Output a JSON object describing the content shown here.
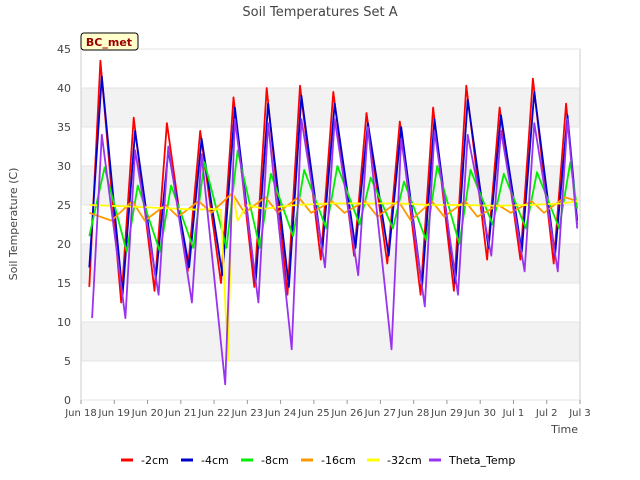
{
  "chart_data": {
    "type": "line",
    "title": "Soil Temperatures Set A",
    "xlabel": "Time",
    "ylabel": "Soil Temperature (C)",
    "xlim": [
      "2024-06-18",
      "2024-07-03"
    ],
    "ylim": [
      0,
      45
    ],
    "yticks": [
      0,
      5,
      10,
      15,
      20,
      25,
      30,
      35,
      40,
      45
    ],
    "xticks": [
      {
        "date": "2024-06-18",
        "label": "Jun 18"
      },
      {
        "date": "2024-06-19",
        "label": "Jun 19"
      },
      {
        "date": "2024-06-20",
        "label": "Jun 20"
      },
      {
        "date": "2024-06-21",
        "label": "Jun 21"
      },
      {
        "date": "2024-06-22",
        "label": "Jun 22"
      },
      {
        "date": "2024-06-23",
        "label": "Jun 23"
      },
      {
        "date": "2024-06-24",
        "label": "Jun 24"
      },
      {
        "date": "2024-06-25",
        "label": "Jun 25"
      },
      {
        "date": "2024-06-26",
        "label": "Jun 26"
      },
      {
        "date": "2024-06-27",
        "label": "Jun 27"
      },
      {
        "date": "2024-06-28",
        "label": "Jun 28"
      },
      {
        "date": "2024-06-29",
        "label": "Jun 29"
      },
      {
        "date": "2024-06-30",
        "label": "Jun 30"
      },
      {
        "date": "2024-07-01",
        "label": "Jul 1"
      },
      {
        "date": "2024-07-02",
        "label": "Jul 2"
      },
      {
        "date": "2024-07-03",
        "label": "Jul 3"
      }
    ],
    "grid": "horizontal bands",
    "legend": "bottom",
    "station_label": "BC_met",
    "series": [
      {
        "name": "-2cm",
        "color": "#ff0000",
        "x": [
          "2024-06-18 06:00",
          "2024-06-18 14:00",
          "2024-06-19 05:00",
          "2024-06-19 14:00",
          "2024-06-20 05:00",
          "2024-06-20 14:00",
          "2024-06-21 05:00",
          "2024-06-21 14:00",
          "2024-06-22 05:00",
          "2024-06-22 14:00",
          "2024-06-23 05:00",
          "2024-06-23 14:00",
          "2024-06-24 05:00",
          "2024-06-24 14:00",
          "2024-06-25 05:00",
          "2024-06-25 14:00",
          "2024-06-26 05:00",
          "2024-06-26 14:00",
          "2024-06-27 05:00",
          "2024-06-27 14:00",
          "2024-06-28 05:00",
          "2024-06-28 14:00",
          "2024-06-29 05:00",
          "2024-06-29 14:00",
          "2024-06-30 05:00",
          "2024-06-30 14:00",
          "2024-07-01 05:00",
          "2024-07-01 14:00",
          "2024-07-02 05:00",
          "2024-07-02 14:00",
          "2024-07-02 22:00"
        ],
        "y": [
          14.5,
          43.5,
          12.5,
          36.2,
          14.0,
          35.5,
          16.5,
          34.5,
          15.0,
          38.8,
          14.5,
          40.0,
          13.5,
          40.3,
          18.0,
          39.5,
          18.5,
          36.8,
          17.5,
          35.7,
          13.5,
          37.5,
          14.0,
          40.3,
          18.0,
          37.5,
          18.0,
          41.2,
          17.5,
          38.0,
          22.5
        ]
      },
      {
        "name": "-4cm",
        "color": "#0000cc",
        "x": [
          "2024-06-18 06:00",
          "2024-06-18 15:00",
          "2024-06-19 06:00",
          "2024-06-19 15:00",
          "2024-06-20 06:00",
          "2024-06-20 15:00",
          "2024-06-21 06:00",
          "2024-06-21 15:00",
          "2024-06-22 06:00",
          "2024-06-22 15:00",
          "2024-06-23 06:00",
          "2024-06-23 15:00",
          "2024-06-24 06:00",
          "2024-06-24 15:00",
          "2024-06-25 06:00",
          "2024-06-25 15:00",
          "2024-06-26 06:00",
          "2024-06-26 15:00",
          "2024-06-27 06:00",
          "2024-06-27 15:00",
          "2024-06-28 06:00",
          "2024-06-28 15:00",
          "2024-06-29 06:00",
          "2024-06-29 15:00",
          "2024-06-30 06:00",
          "2024-06-30 15:00",
          "2024-07-01 06:00",
          "2024-07-01 15:00",
          "2024-07-02 06:00",
          "2024-07-02 15:00",
          "2024-07-02 22:00"
        ],
        "y": [
          17.0,
          41.5,
          13.5,
          34.5,
          15.5,
          32.0,
          17.0,
          33.5,
          16.0,
          37.5,
          15.0,
          38.0,
          14.5,
          39.0,
          19.0,
          38.0,
          19.5,
          35.5,
          18.5,
          35.0,
          14.5,
          36.0,
          15.0,
          38.5,
          19.5,
          36.5,
          19.0,
          39.5,
          18.5,
          36.5,
          23.0
        ]
      },
      {
        "name": "-8cm",
        "color": "#00ee00",
        "x": [
          "2024-06-18 06:00",
          "2024-06-18 17:00",
          "2024-06-19 09:00",
          "2024-06-19 17:00",
          "2024-06-20 09:00",
          "2024-06-20 17:00",
          "2024-06-21 09:00",
          "2024-06-21 17:00",
          "2024-06-22 09:00",
          "2024-06-22 17:00",
          "2024-06-23 09:00",
          "2024-06-23 17:00",
          "2024-06-24 09:00",
          "2024-06-24 17:00",
          "2024-06-25 09:00",
          "2024-06-25 17:00",
          "2024-06-26 09:00",
          "2024-06-26 17:00",
          "2024-06-27 09:00",
          "2024-06-27 17:00",
          "2024-06-28 09:00",
          "2024-06-28 17:00",
          "2024-06-29 09:00",
          "2024-06-29 17:00",
          "2024-06-30 09:00",
          "2024-06-30 17:00",
          "2024-07-01 09:00",
          "2024-07-01 17:00",
          "2024-07-02 09:00",
          "2024-07-02 17:00",
          "2024-07-02 22:00"
        ],
        "y": [
          21.0,
          29.8,
          19.0,
          27.5,
          19.0,
          27.5,
          19.5,
          30.5,
          19.5,
          32.0,
          19.5,
          29.0,
          21.0,
          29.5,
          22.0,
          30.0,
          22.5,
          28.5,
          22.0,
          28.0,
          20.5,
          30.0,
          20.0,
          29.5,
          22.5,
          29.0,
          22.0,
          29.2,
          22.0,
          30.5,
          24.5
        ]
      },
      {
        "name": "-16cm",
        "color": "#ff9900",
        "x": [
          "2024-06-18 06:00",
          "2024-06-18 22:00",
          "2024-06-19 13:00",
          "2024-06-19 22:00",
          "2024-06-20 13:00",
          "2024-06-20 22:00",
          "2024-06-21 13:00",
          "2024-06-21 22:00",
          "2024-06-22 13:00",
          "2024-06-22 22:00",
          "2024-06-23 13:00",
          "2024-06-23 22:00",
          "2024-06-24 13:00",
          "2024-06-24 22:00",
          "2024-06-25 13:00",
          "2024-06-25 22:00",
          "2024-06-26 13:00",
          "2024-06-26 22:00",
          "2024-06-27 13:00",
          "2024-06-27 22:00",
          "2024-06-28 13:00",
          "2024-06-28 22:00",
          "2024-06-29 13:00",
          "2024-06-29 22:00",
          "2024-06-30 13:00",
          "2024-06-30 22:00",
          "2024-07-01 13:00",
          "2024-07-01 22:00",
          "2024-07-02 13:00",
          "2024-07-02 22:00"
        ],
        "y": [
          24.0,
          23.0,
          25.5,
          23.0,
          25.0,
          23.5,
          25.5,
          24.0,
          26.5,
          24.0,
          26.0,
          24.0,
          26.0,
          24.0,
          25.5,
          24.0,
          25.5,
          23.5,
          25.5,
          23.0,
          25.5,
          23.5,
          25.5,
          23.5,
          25.0,
          24.0,
          25.5,
          24.0,
          26.0,
          25.5
        ]
      },
      {
        "name": "-32cm",
        "color": "#ffff00",
        "x": [
          "2024-06-18 06:00",
          "2024-06-19 12:00",
          "2024-06-20 12:00",
          "2024-06-21 12:00",
          "2024-06-21 22:00",
          "2024-06-22 05:00",
          "2024-06-22 10:00",
          "2024-06-22 13:00",
          "2024-06-22 17:00",
          "2024-06-23 00:00",
          "2024-06-23 12:00",
          "2024-06-24 00:00",
          "2024-06-24 12:00",
          "2024-06-25 12:00",
          "2024-06-26 12:00",
          "2024-06-27 12:00",
          "2024-06-28 12:00",
          "2024-06-29 12:00",
          "2024-06-30 12:00",
          "2024-07-01 12:00",
          "2024-07-02 12:00",
          "2024-07-02 22:00"
        ],
        "y": [
          25.0,
          24.8,
          24.6,
          24.4,
          24.5,
          24.4,
          5.0,
          27.0,
          23.0,
          25.0,
          24.5,
          24.8,
          25.0,
          25.2,
          25.2,
          25.2,
          25.0,
          25.0,
          24.9,
          25.0,
          25.2,
          25.5
        ]
      },
      {
        "name": "Theta_Temp",
        "color": "#9933ee",
        "x": [
          "2024-06-18 08:00",
          "2024-06-18 15:00",
          "2024-06-19 08:00",
          "2024-06-19 15:00",
          "2024-06-20 08:00",
          "2024-06-20 15:00",
          "2024-06-21 08:00",
          "2024-06-21 15:00",
          "2024-06-22 08:00",
          "2024-06-22 15:00",
          "2024-06-23 08:00",
          "2024-06-23 15:00",
          "2024-06-24 08:00",
          "2024-06-24 15:00",
          "2024-06-25 08:00",
          "2024-06-25 15:00",
          "2024-06-26 08:00",
          "2024-06-26 15:00",
          "2024-06-27 08:00",
          "2024-06-27 15:00",
          "2024-06-28 08:00",
          "2024-06-28 15:00",
          "2024-06-29 08:00",
          "2024-06-29 15:00",
          "2024-06-30 08:00",
          "2024-06-30 15:00",
          "2024-07-01 08:00",
          "2024-07-01 15:00",
          "2024-07-02 08:00",
          "2024-07-02 15:00",
          "2024-07-02 22:00"
        ],
        "y": [
          10.5,
          34.0,
          10.5,
          32.0,
          13.5,
          32.5,
          12.5,
          31.5,
          2.0,
          36.0,
          12.5,
          35.5,
          6.5,
          36.0,
          17.0,
          36.0,
          16.0,
          35.0,
          6.5,
          33.5,
          12.0,
          34.5,
          13.5,
          34.0,
          18.5,
          34.5,
          16.5,
          35.5,
          16.5,
          36.0,
          22.0
        ]
      }
    ]
  }
}
